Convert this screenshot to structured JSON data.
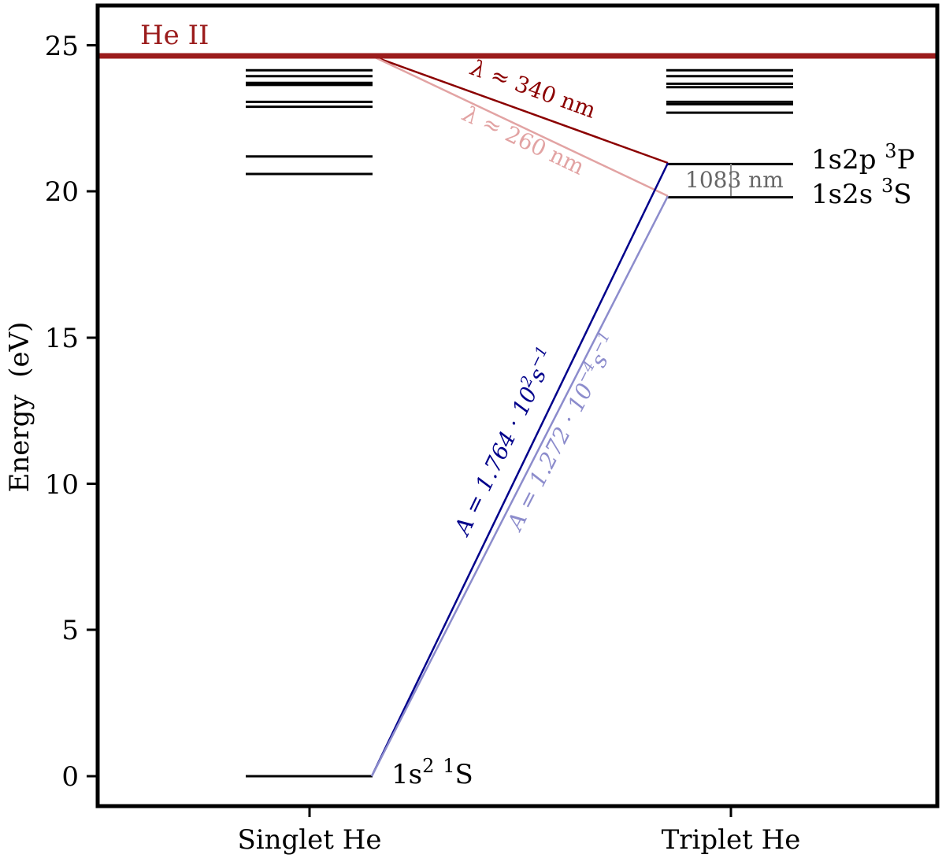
{
  "chart_data": {
    "type": "energy-level-diagram",
    "ylabel": "Energy  (eV)",
    "ylim": [
      -1,
      26.4
    ],
    "yticks": [
      0,
      5,
      10,
      15,
      20,
      25
    ],
    "columns": [
      {
        "key": "singlet",
        "label": "Singlet He"
      },
      {
        "key": "triplet",
        "label": "Triplet He"
      }
    ],
    "ionization": {
      "label": "He II",
      "energy": 24.59,
      "color": "#9b1c1c"
    },
    "singlet_levels": [
      0,
      20.62,
      21.22,
      22.92,
      23.09,
      23.67,
      23.74,
      23.97,
      24.17
    ],
    "triplet_levels": [
      19.82,
      20.96,
      22.72,
      23.01,
      23.09,
      23.59,
      23.71,
      23.97,
      24.17
    ],
    "state_labels": [
      {
        "key": "ground",
        "base": "1s",
        "sup1": "2",
        "mid": " ",
        "sup2": "1",
        "tail": "S",
        "energy": 0
      },
      {
        "key": "p3",
        "base": "1s2p ",
        "sup1": "",
        "mid": "",
        "sup2": "3",
        "tail": "P",
        "energy": 20.96
      },
      {
        "key": "s3",
        "base": "1s2s ",
        "sup1": "",
        "mid": "",
        "sup2": "3",
        "tail": "S",
        "energy": 19.82
      }
    ],
    "transitions": [
      {
        "from": "He II",
        "to": "1s2p 3P",
        "label_prefix": "λ ≈ ",
        "label_value": "340",
        "label_unit": " nm",
        "color": "#8b0000"
      },
      {
        "from": "He II",
        "to": "1s2s 3S",
        "label_prefix": "λ ≈ ",
        "label_value": "260",
        "label_unit": " nm",
        "color": "#e2a3a3"
      },
      {
        "from": "1s2 1S",
        "to": "1s2p 3P",
        "label_prefix": "A = 1.764 · 10",
        "label_exp": "2",
        "label_unit": "s",
        "label_unit_exp": "−1",
        "color": "#00008b"
      },
      {
        "from": "1s2 1S",
        "to": "1s2s 3S",
        "label_prefix": "A = 1.272 · 10",
        "label_exp": "−4",
        "label_unit": "s",
        "label_unit_exp": "−1",
        "color": "#8c8ccc"
      }
    ],
    "line_1083": {
      "value": "1083",
      "unit": " nm",
      "color": "#666666"
    }
  }
}
